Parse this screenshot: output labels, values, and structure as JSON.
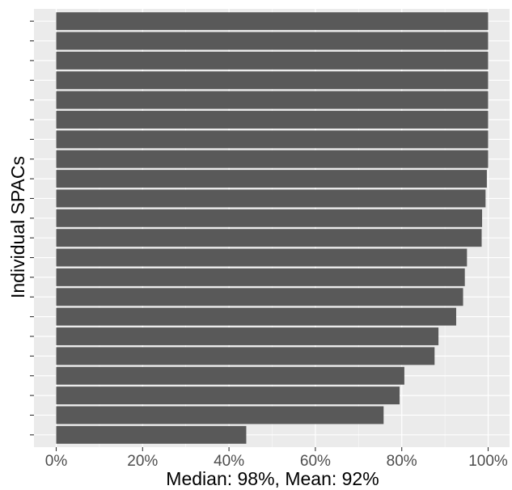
{
  "chart_data": {
    "type": "bar",
    "orientation": "horizontal",
    "title": "",
    "xlabel": "Median: 98%, Mean: 92%",
    "ylabel": "Individual SPACs",
    "xlim": [
      0,
      100
    ],
    "x_ticks": [
      "0%",
      "20%",
      "40%",
      "60%",
      "80%",
      "100%"
    ],
    "grid": true,
    "colors": {
      "panel": "#EBEBEB",
      "grid_major": "#FFFFFF",
      "bar": "#595959",
      "tick_text": "#4D4D4D"
    },
    "values": [
      44,
      75.8,
      79.5,
      80.6,
      87.6,
      88.5,
      92.6,
      94.2,
      94.6,
      95.1,
      98.5,
      98.6,
      99.4,
      99.7,
      100,
      100,
      100,
      100,
      100,
      100,
      100,
      100
    ]
  }
}
